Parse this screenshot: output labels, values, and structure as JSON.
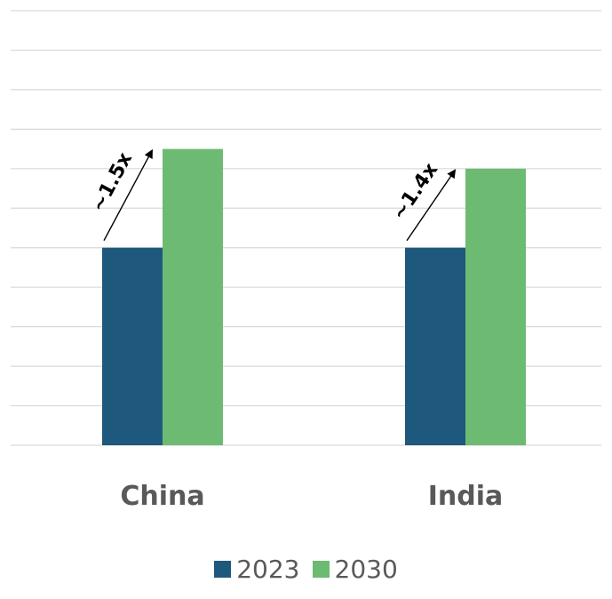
{
  "chart_data": {
    "type": "bar",
    "categories": [
      "China",
      "India"
    ],
    "series": [
      {
        "name": "2023",
        "color": "#1f587d",
        "values": [
          1.0,
          1.0
        ]
      },
      {
        "name": "2030",
        "color": "#6dbb72",
        "values": [
          1.5,
          1.4
        ]
      }
    ],
    "annotations": [
      "~1.5x",
      "~1.4x"
    ],
    "ylim": [
      0,
      2.2
    ],
    "grid": true,
    "legend_position": "bottom-center",
    "xlabel": "",
    "ylabel": "",
    "title": ""
  }
}
